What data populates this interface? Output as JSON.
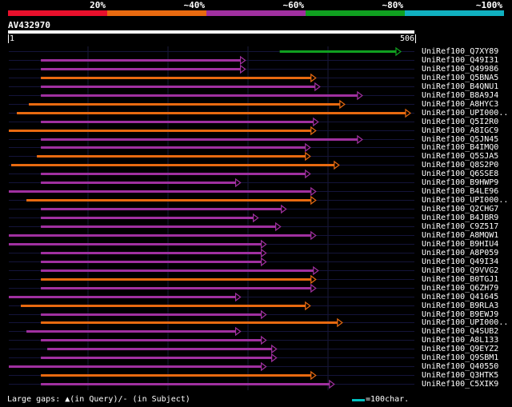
{
  "legend": [
    {
      "label": "20%",
      "color": "#e8102c"
    },
    {
      "label": "~40%",
      "color": "#e86a10"
    },
    {
      "label": "~60%",
      "color": "#a030a0"
    },
    {
      "label": "~80%",
      "color": "#10a020"
    },
    {
      "label": "~100%",
      "color": "#10b0c0"
    }
  ],
  "query": {
    "name": "AV432970",
    "start": "1",
    "end": "506"
  },
  "footer": {
    "gaps_text": "Large gaps: ▲(in Query)/- (in Subject)",
    "scale_text": "=100char."
  },
  "chart_data": {
    "type": "alignment",
    "query_length": 506,
    "hits": [
      {
        "name": "UniRef100_Q7XY89",
        "start": 338,
        "end": 488,
        "color": "#10a020"
      },
      {
        "name": "UniRef100_Q49I31",
        "start": 40,
        "end": 294,
        "color": "#a030a0"
      },
      {
        "name": "UniRef100_Q49986",
        "start": 40,
        "end": 294,
        "color": "#a030a0"
      },
      {
        "name": "UniRef100_Q5BNA5",
        "start": 40,
        "end": 382,
        "color": "#e86a10"
      },
      {
        "name": "UniRef100_B4QNU1",
        "start": 40,
        "end": 387,
        "color": "#a030a0"
      },
      {
        "name": "UniRef100_B8A9J4",
        "start": 40,
        "end": 440,
        "color": "#a030a0"
      },
      {
        "name": "UniRef100_A8HYC3",
        "start": 25,
        "end": 418,
        "color": "#e86a10"
      },
      {
        "name": "UniRef100_UPI000..",
        "start": 10,
        "end": 500,
        "color": "#e86a10"
      },
      {
        "name": "UniRef100_Q5I2R0",
        "start": 40,
        "end": 385,
        "color": "#a030a0"
      },
      {
        "name": "UniRef100_A8IGC9",
        "start": 0,
        "end": 382,
        "color": "#e86a10"
      },
      {
        "name": "UniRef100_Q5JN45",
        "start": 40,
        "end": 440,
        "color": "#a030a0"
      },
      {
        "name": "UniRef100_B4IMQ0",
        "start": 40,
        "end": 375,
        "color": "#a030a0"
      },
      {
        "name": "UniRef100_Q5SJA5",
        "start": 35,
        "end": 375,
        "color": "#e86a10"
      },
      {
        "name": "UniRef100_Q8S2P0",
        "start": 3,
        "end": 411,
        "color": "#e86a10"
      },
      {
        "name": "UniRef100_Q6SSE8",
        "start": 40,
        "end": 375,
        "color": "#a030a0"
      },
      {
        "name": "UniRef100_B9HWP9",
        "start": 40,
        "end": 288,
        "color": "#a030a0"
      },
      {
        "name": "UniRef100_B4LE96",
        "start": 0,
        "end": 382,
        "color": "#a030a0"
      },
      {
        "name": "UniRef100_UPI000..",
        "start": 22,
        "end": 382,
        "color": "#e86a10"
      },
      {
        "name": "UniRef100_Q2CHG7",
        "start": 40,
        "end": 345,
        "color": "#a030a0"
      },
      {
        "name": "UniRef100_B4JBR9",
        "start": 40,
        "end": 310,
        "color": "#a030a0"
      },
      {
        "name": "UniRef100_C9Z517",
        "start": 40,
        "end": 338,
        "color": "#a030a0"
      },
      {
        "name": "UniRef100_A8MQW1",
        "start": 0,
        "end": 382,
        "color": "#a030a0"
      },
      {
        "name": "UniRef100_B9HIU4",
        "start": 0,
        "end": 320,
        "color": "#a030a0"
      },
      {
        "name": "UniRef100_A8P059",
        "start": 40,
        "end": 320,
        "color": "#a030a0"
      },
      {
        "name": "UniRef100_Q49I34",
        "start": 40,
        "end": 320,
        "color": "#a030a0"
      },
      {
        "name": "UniRef100_Q9VVG2",
        "start": 40,
        "end": 385,
        "color": "#a030a0"
      },
      {
        "name": "UniRef100_B0TGJ1",
        "start": 40,
        "end": 382,
        "color": "#e86a10"
      },
      {
        "name": "UniRef100_Q6ZH79",
        "start": 40,
        "end": 382,
        "color": "#a030a0"
      },
      {
        "name": "UniRef100_Q41645",
        "start": 0,
        "end": 288,
        "color": "#a030a0"
      },
      {
        "name": "UniRef100_B9RLA3",
        "start": 15,
        "end": 375,
        "color": "#e86a10"
      },
      {
        "name": "UniRef100_B9EWJ9",
        "start": 40,
        "end": 320,
        "color": "#a030a0"
      },
      {
        "name": "UniRef100_UPI000..",
        "start": 40,
        "end": 415,
        "color": "#e86a10"
      },
      {
        "name": "UniRef100_Q4SUB2",
        "start": 22,
        "end": 288,
        "color": "#a030a0"
      },
      {
        "name": "UniRef100_A8L133",
        "start": 40,
        "end": 320,
        "color": "#a030a0"
      },
      {
        "name": "UniRef100_Q9EYZ2",
        "start": 48,
        "end": 333,
        "color": "#a030a0"
      },
      {
        "name": "UniRef100_Q9SBM1",
        "start": 40,
        "end": 333,
        "color": "#a030a0"
      },
      {
        "name": "UniRef100_Q40550",
        "start": 0,
        "end": 320,
        "color": "#a030a0"
      },
      {
        "name": "UniRef100_Q3HTK5",
        "start": 40,
        "end": 382,
        "color": "#e86a10"
      },
      {
        "name": "UniRef100_C5XIK9",
        "start": 40,
        "end": 405,
        "color": "#a030a0"
      }
    ]
  }
}
